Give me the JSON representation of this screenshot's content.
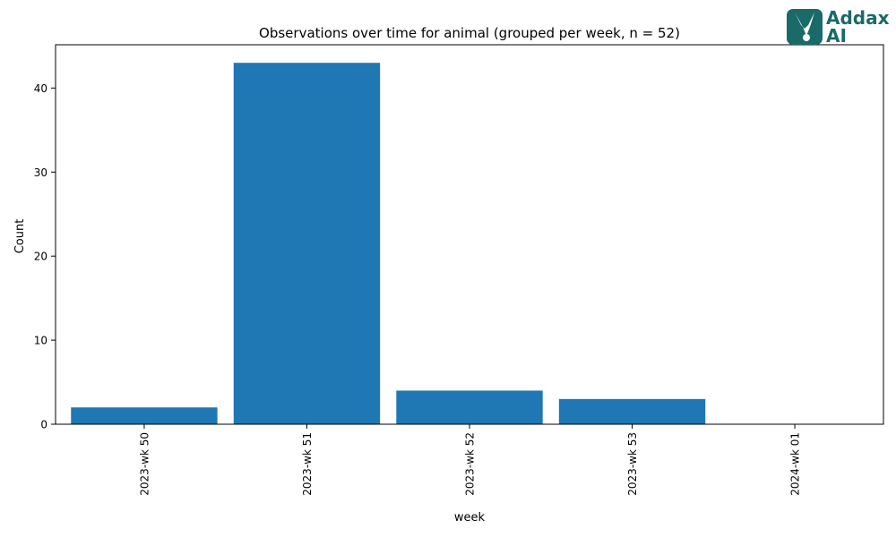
{
  "chart_data": {
    "type": "bar",
    "title": "Observations over time for animal (grouped per week, n = 52)",
    "xlabel": "week",
    "ylabel": "Count",
    "categories": [
      "2023-wk 50",
      "2023-wk 51",
      "2023-wk 52",
      "2023-wk 53",
      "2024-wk 01"
    ],
    "values": [
      2,
      43,
      4,
      3,
      0
    ],
    "ylim": [
      0,
      45.15
    ],
    "yticks": [
      0,
      10,
      20,
      30,
      40
    ],
    "bar_color": "#1f77b4",
    "grid": false,
    "legend": "none"
  },
  "logo": {
    "line1": "Addax",
    "line2": "AI",
    "color": "#1b6a6a"
  }
}
